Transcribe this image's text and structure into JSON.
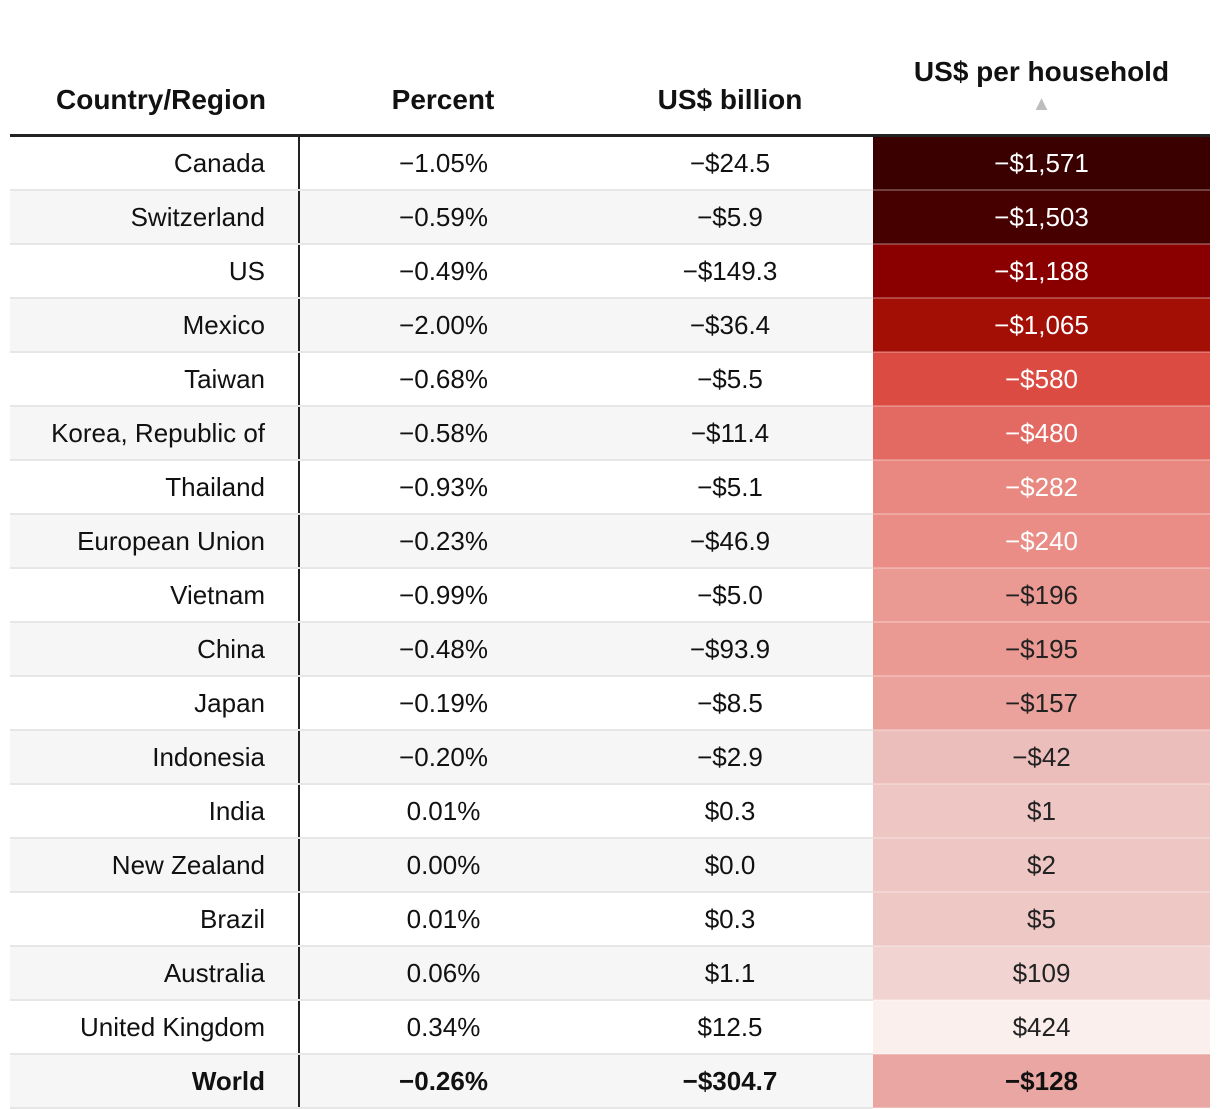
{
  "chart_data": {
    "type": "table",
    "columns": [
      "Country/Region",
      "Percent",
      "US$ billion",
      "US$ per household"
    ],
    "sort_indicator": "▲",
    "rows": [
      {
        "country": "Canada",
        "percent": "−1.05%",
        "billion": "−$24.5",
        "household": "−$1,571",
        "bg": "#3a0000",
        "fg": "#ffffff"
      },
      {
        "country": "Switzerland",
        "percent": "−0.59%",
        "billion": "−$5.9",
        "household": "−$1,503",
        "bg": "#470000",
        "fg": "#ffffff"
      },
      {
        "country": "US",
        "percent": "−0.49%",
        "billion": "−$149.3",
        "household": "−$1,188",
        "bg": "#8a0000",
        "fg": "#ffffff"
      },
      {
        "country": "Mexico",
        "percent": "−2.00%",
        "billion": "−$36.4",
        "household": "−$1,065",
        "bg": "#a30e05",
        "fg": "#ffffff"
      },
      {
        "country": "Taiwan",
        "percent": "−0.68%",
        "billion": "−$5.5",
        "household": "−$580",
        "bg": "#db4b42",
        "fg": "#ffffff"
      },
      {
        "country": "Korea, Republic of",
        "percent": "−0.58%",
        "billion": "−$11.4",
        "household": "−$480",
        "bg": "#e26a63",
        "fg": "#ffffff"
      },
      {
        "country": "Thailand",
        "percent": "−0.93%",
        "billion": "−$5.1",
        "household": "−$282",
        "bg": "#e98880",
        "fg": "#ffffff"
      },
      {
        "country": "European Union",
        "percent": "−0.23%",
        "billion": "−$46.9",
        "household": "−$240",
        "bg": "#e98d86",
        "fg": "#ffffff"
      },
      {
        "country": "Vietnam",
        "percent": "−0.99%",
        "billion": "−$5.0",
        "household": "−$196",
        "bg": "#eb9a93",
        "fg": "#222222"
      },
      {
        "country": "China",
        "percent": "−0.48%",
        "billion": "−$93.9",
        "household": "−$195",
        "bg": "#eb9a93",
        "fg": "#222222"
      },
      {
        "country": "Japan",
        "percent": "−0.19%",
        "billion": "−$8.5",
        "household": "−$157",
        "bg": "#eca29c",
        "fg": "#222222"
      },
      {
        "country": "Indonesia",
        "percent": "−0.20%",
        "billion": "−$2.9",
        "household": "−$42",
        "bg": "#ecbebb",
        "fg": "#222222"
      },
      {
        "country": "India",
        "percent": "0.01%",
        "billion": "$0.3",
        "household": "$1",
        "bg": "#eec7c4",
        "fg": "#222222"
      },
      {
        "country": "New Zealand",
        "percent": "0.00%",
        "billion": "$0.0",
        "household": "$2",
        "bg": "#eec7c4",
        "fg": "#222222"
      },
      {
        "country": "Brazil",
        "percent": "0.01%",
        "billion": "$0.3",
        "household": "$5",
        "bg": "#eec8c5",
        "fg": "#222222"
      },
      {
        "country": "Australia",
        "percent": "0.06%",
        "billion": "$1.1",
        "household": "$109",
        "bg": "#f1d4d2",
        "fg": "#222222"
      },
      {
        "country": "United Kingdom",
        "percent": "0.34%",
        "billion": "$12.5",
        "household": "$424",
        "bg": "#faefed",
        "fg": "#222222"
      },
      {
        "country": "World",
        "percent": "−0.26%",
        "billion": "−$304.7",
        "household": "−$128",
        "bg": "#eaa6a2",
        "fg": "#111111",
        "total": true
      }
    ]
  }
}
